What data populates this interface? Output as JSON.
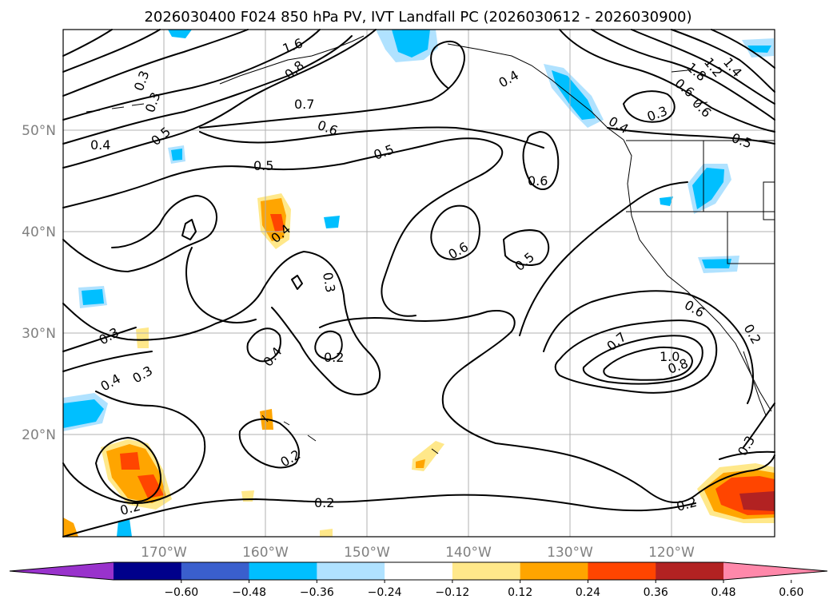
{
  "title": "2026030400 F024 850 hPa PV, IVT Landfall PC (2026030612 - 2026030900)",
  "lon_ticks": [
    "170°W",
    "160°W",
    "150°W",
    "140°W",
    "130°W",
    "120°W"
  ],
  "lat_ticks": [
    "50°N",
    "40°N",
    "30°N",
    "20°N"
  ],
  "contour_labels": [
    "1.6",
    "0.8",
    "0.3",
    "0.7",
    "0.4",
    "0.5",
    "0.6",
    "0.5",
    "0.5",
    "0.6",
    "0.4",
    "0.3",
    "0.4",
    "1.8",
    "1.2",
    "1.4",
    "0.6",
    "0.5",
    "0.6",
    "0.6",
    "0.5",
    "0.4",
    "0.3",
    "0.3",
    "0.4",
    "0.3",
    "0.2",
    "0.7",
    "1.0",
    "0.8",
    "0.6",
    "0.2",
    "0.3",
    "0.4",
    "0.2",
    "0.2",
    "0.2",
    "0.3",
    "0.2"
  ],
  "colorbar": {
    "ticks": [
      "−0.60",
      "−0.48",
      "−0.36",
      "−0.24",
      "−0.12",
      "0.12",
      "0.24",
      "0.36",
      "0.48",
      "0.60"
    ],
    "colors": [
      "#9932cc",
      "#00008b",
      "#3a5fcd",
      "#00bfff",
      "#b0e2ff",
      "#ffffff",
      "#ffe88a",
      "#ffa500",
      "#ff4500",
      "#b22222",
      "#ff88aa"
    ]
  },
  "chart_data": {
    "type": "map",
    "title": "2026030400 F024 850 hPa PV, IVT Landfall PC (2026030612 - 2026030900)",
    "extent": {
      "lon": [
        -180,
        -110
      ],
      "lat": [
        10,
        60
      ]
    },
    "grid": true,
    "colorbar_levels": [
      -0.6,
      -0.48,
      -0.36,
      -0.24,
      -0.12,
      0.12,
      0.24,
      0.36,
      0.48,
      0.6
    ],
    "contour_levels": [
      0.2,
      0.3,
      0.4,
      0.5,
      0.6,
      0.7,
      0.8,
      1.0,
      1.2,
      1.4,
      1.6,
      1.8
    ]
  }
}
